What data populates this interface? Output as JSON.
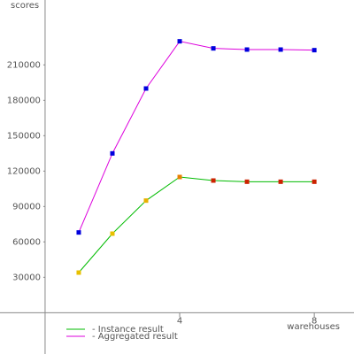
{
  "chart_data": {
    "type": "line",
    "y_label": "scores",
    "x_label": "warehouses",
    "x": [
      1,
      2,
      3,
      4,
      5,
      6,
      7,
      8
    ],
    "series": [
      {
        "name": "- Instance result",
        "color": "#00bb00",
        "point_colors": [
          "#e8c000",
          "#e8c000",
          "#e8b000",
          "#e88000",
          "#cc2200",
          "#cc2200",
          "#cc2200",
          "#cc2200"
        ],
        "values": [
          34000,
          67000,
          95000,
          115000,
          112000,
          111000,
          111000,
          111000
        ]
      },
      {
        "name": "- Aggregated result",
        "color": "#dd00dd",
        "point_colors": [
          "#0000dd",
          "#0000dd",
          "#0000dd",
          "#0000dd",
          "#0000dd",
          "#0000dd",
          "#0000dd",
          "#0000dd"
        ],
        "values": [
          68000,
          135000,
          190000,
          230000,
          224000,
          223000,
          223000,
          222500
        ]
      }
    ],
    "xlim": [
      -1.34,
      9.18
    ],
    "ylim": [
      -35000,
      265000
    ],
    "xticks": [
      4,
      8
    ],
    "yticks": [
      30000,
      60000,
      90000,
      120000,
      150000,
      180000,
      210000
    ]
  }
}
